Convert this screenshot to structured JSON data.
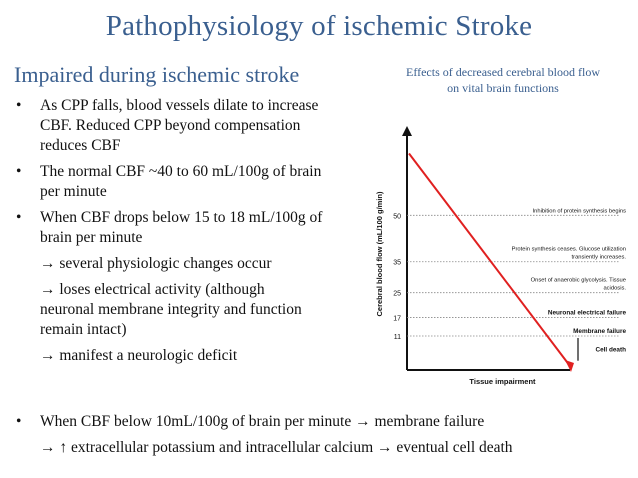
{
  "slide": {
    "title": "Pathophysiology of ischemic Stroke",
    "subtitle": "Impaired during ischemic stroke"
  },
  "bullets": [
    {
      "bullet": "•",
      "lines": [
        "As CPP falls, blood vessels dilate to increase",
        "CBF. Reduced CPP beyond compensation",
        "reduces CBF"
      ]
    },
    {
      "bullet": "•",
      "lines": [
        "The normal CBF ~40 to 60 mL/100g of brain",
        "per minute"
      ]
    },
    {
      "bullet": "•",
      "lines": [
        "When CBF drops below 15 to 18 mL/100g of",
        "brain per minute"
      ]
    }
  ],
  "subitems": [
    {
      "lines": [
        "→ several physiologic changes occur"
      ]
    },
    {
      "lines": [
        "→ loses electrical activity (although",
        "neuronal membrane integrity and function",
        "remain intact)"
      ]
    },
    {
      "lines": [
        "→ manifest a neurologic deficit"
      ]
    }
  ],
  "bottom": {
    "bullet": "•",
    "line1": "When CBF below 10mL/100g of brain per minute → membrane failure",
    "line2": "→ ↑ extracellular potassium and intracellular calcium → eventual cell death"
  },
  "chart_data": {
    "type": "line",
    "title": "Effects of decreased cerebral blood flow on vital brain functions",
    "title_lines": [
      "Effects of decreased cerebral blood flow",
      "on vital brain functions"
    ],
    "xlabel": "Tissue impairment",
    "ylabel": "Cerebral blood flow (mL/100 g/min)",
    "ylim": [
      0,
      75
    ],
    "yticks": [
      50,
      35,
      25,
      17,
      11
    ],
    "line": {
      "x": [
        0,
        1
      ],
      "y": [
        70,
        0
      ],
      "color": "#e02020"
    },
    "thresholds": [
      {
        "y": 50,
        "lines": [
          "Inhibition of protein synthesis begins"
        ]
      },
      {
        "y": 35,
        "lines": [
          "Protein synthesis ceases. Glucose utilization",
          "transiently increases."
        ]
      },
      {
        "y": 25,
        "lines": [
          "Onset of anaerobic glycolysis. Tissue",
          "acidosis."
        ]
      },
      {
        "y": 17,
        "lines": [
          "Neuronal electrical failure"
        ]
      },
      {
        "y": 11,
        "lines": [
          "Membrane failure"
        ]
      },
      {
        "y": 5,
        "lines": [
          "Cell death"
        ]
      }
    ]
  }
}
